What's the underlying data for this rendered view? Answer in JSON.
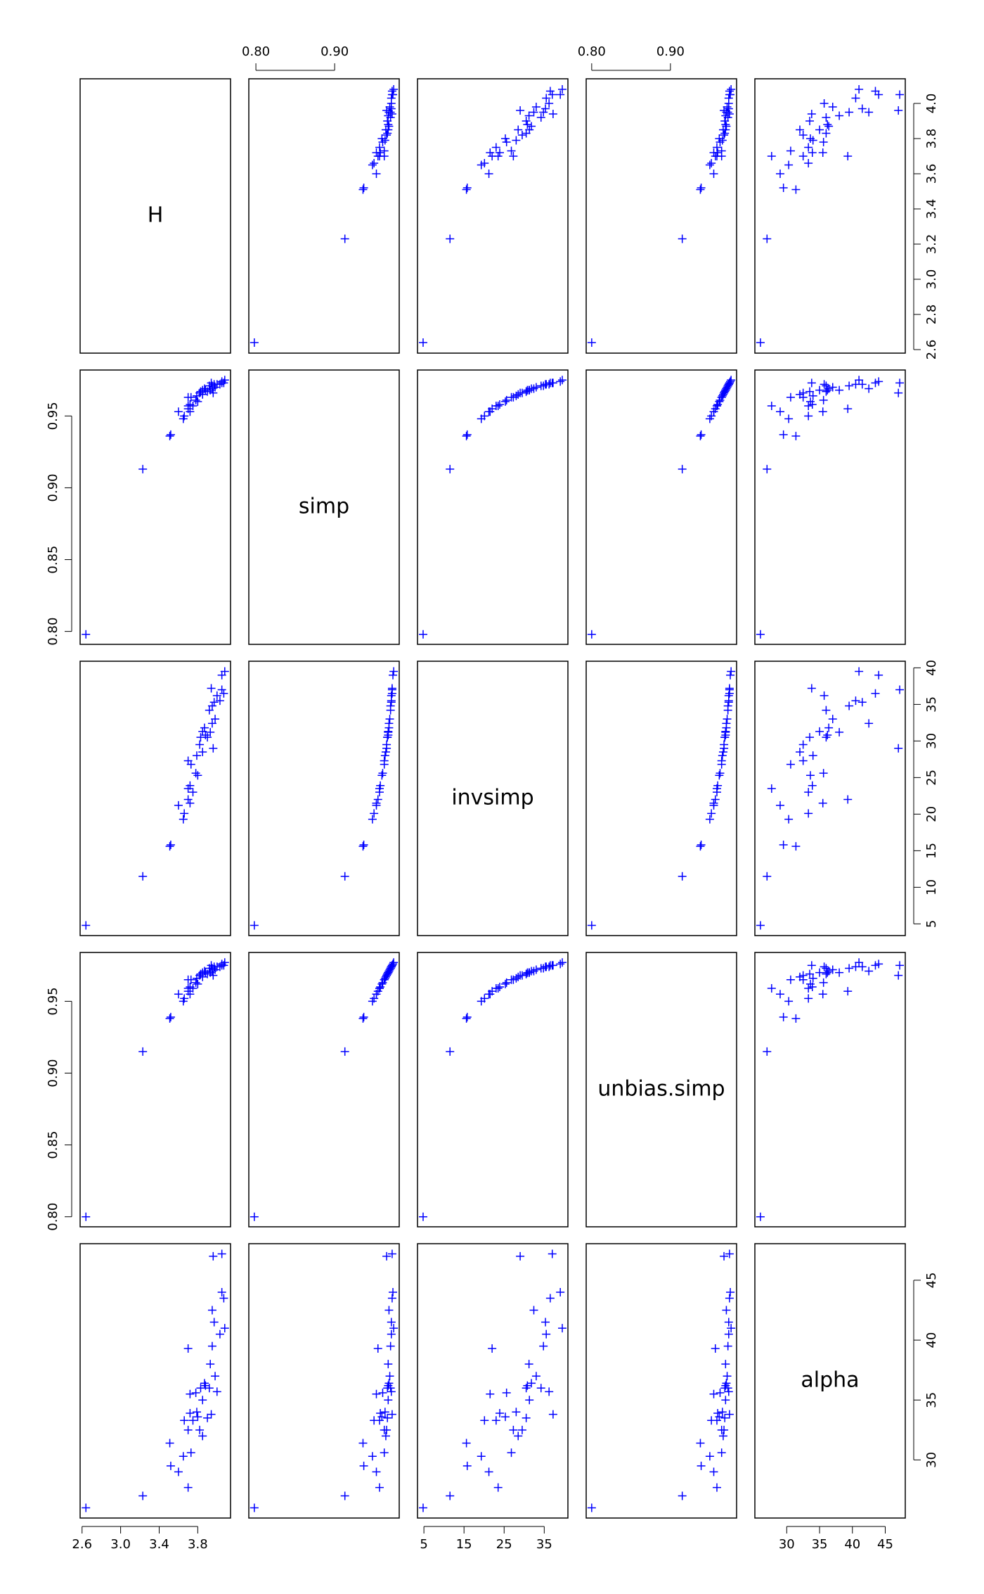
{
  "chart_data": {
    "type": "pairs",
    "color": "#0000ff",
    "variables": [
      {
        "name": "H",
        "values": [
          2.64,
          3.23,
          3.51,
          3.52,
          3.6,
          3.65,
          3.66,
          3.7,
          3.72,
          3.7,
          3.72,
          3.75,
          3.7,
          3.73,
          3.78,
          3.8,
          3.79,
          3.82,
          3.83,
          3.85,
          3.87,
          3.9,
          3.88,
          3.93,
          3.95,
          3.92,
          3.95,
          3.97,
          3.96,
          4.0,
          3.94,
          4.05,
          4.08,
          4.07,
          4.05,
          4.03,
          3.98,
          3.85
        ],
        "lim": [
          2.58,
          4.14
        ],
        "xticks": [
          2.6,
          {
            "value": 3.0,
            "label": "3.0"
          },
          3.4,
          3.8
        ],
        "yticks": [
          2.6,
          2.8,
          {
            "value": 3.0,
            "label": "3.0"
          },
          3.2,
          3.4,
          3.6,
          3.8,
          {
            "value": 4.0,
            "label": "4.0"
          }
        ]
      },
      {
        "name": "simp",
        "values": [
          0.798,
          0.913,
          0.936,
          0.937,
          0.953,
          0.948,
          0.95,
          0.955,
          0.953,
          0.957,
          0.958,
          0.957,
          0.963,
          0.963,
          0.961,
          0.96,
          0.964,
          0.966,
          0.967,
          0.968,
          0.969,
          0.967,
          0.968,
          0.968,
          0.969,
          0.971,
          0.971,
          0.972,
          0.966,
          0.972,
          0.973,
          0.974,
          0.975,
          0.973,
          0.973,
          0.972,
          0.97,
          0.965
        ],
        "lim": [
          0.791,
          0.982
        ],
        "xticks": [
          {
            "value": 0.8,
            "label": "0.80"
          },
          {
            "value": 0.9,
            "label": "0.90"
          }
        ],
        "yticks": [
          {
            "value": 0.8,
            "label": "0.80"
          },
          0.85,
          {
            "value": 0.9,
            "label": "0.90"
          },
          0.95
        ]
      },
      {
        "name": "invsimp",
        "values": [
          4.8,
          11.5,
          15.6,
          15.8,
          21.2,
          19.3,
          20.1,
          22.0,
          21.5,
          23.5,
          23.9,
          23.0,
          27.3,
          26.8,
          25.6,
          25.3,
          28.0,
          29.5,
          30.5,
          31.3,
          31.8,
          30.5,
          30.8,
          31.2,
          32.4,
          34.2,
          34.8,
          35.3,
          29.0,
          36.2,
          37.2,
          39.0,
          39.5,
          36.5,
          37.0,
          35.5,
          33.0,
          28.5
        ],
        "lim": [
          3.4,
          40.9
        ],
        "xticks": [
          5,
          15,
          25,
          35
        ],
        "yticks": [
          5,
          10,
          15,
          20,
          25,
          30,
          35,
          40
        ]
      },
      {
        "name": "unbias.simp",
        "values": [
          0.8,
          0.915,
          0.938,
          0.939,
          0.955,
          0.95,
          0.952,
          0.957,
          0.955,
          0.959,
          0.96,
          0.959,
          0.965,
          0.965,
          0.963,
          0.962,
          0.966,
          0.968,
          0.969,
          0.97,
          0.971,
          0.969,
          0.97,
          0.97,
          0.971,
          0.973,
          0.973,
          0.974,
          0.968,
          0.974,
          0.975,
          0.976,
          0.977,
          0.975,
          0.975,
          0.974,
          0.972,
          0.967
        ],
        "lim": [
          0.793,
          0.984
        ],
        "xticks": [
          {
            "value": 0.8,
            "label": "0.80"
          },
          {
            "value": 0.9,
            "label": "0.90"
          }
        ],
        "yticks": [
          {
            "value": 0.8,
            "label": "0.80"
          },
          0.85,
          {
            "value": 0.9,
            "label": "0.90"
          },
          0.95
        ]
      },
      {
        "name": "alpha",
        "values": [
          26.0,
          27.0,
          31.4,
          29.5,
          29.0,
          30.3,
          33.3,
          39.3,
          35.5,
          27.7,
          33.9,
          33.3,
          32.5,
          30.6,
          35.6,
          33.6,
          34.0,
          32.5,
          36.0,
          35.0,
          36.4,
          33.5,
          36.2,
          38.0,
          42.5,
          36.0,
          39.5,
          41.5,
          47.0,
          35.7,
          33.8,
          44.0,
          41.0,
          43.5,
          47.2,
          40.5,
          37.0,
          32.0
        ],
        "lim": [
          25.15,
          48.05
        ],
        "xticks": [
          30,
          35,
          40,
          45
        ],
        "yticks": [
          30,
          35,
          40,
          45
        ]
      }
    ]
  }
}
